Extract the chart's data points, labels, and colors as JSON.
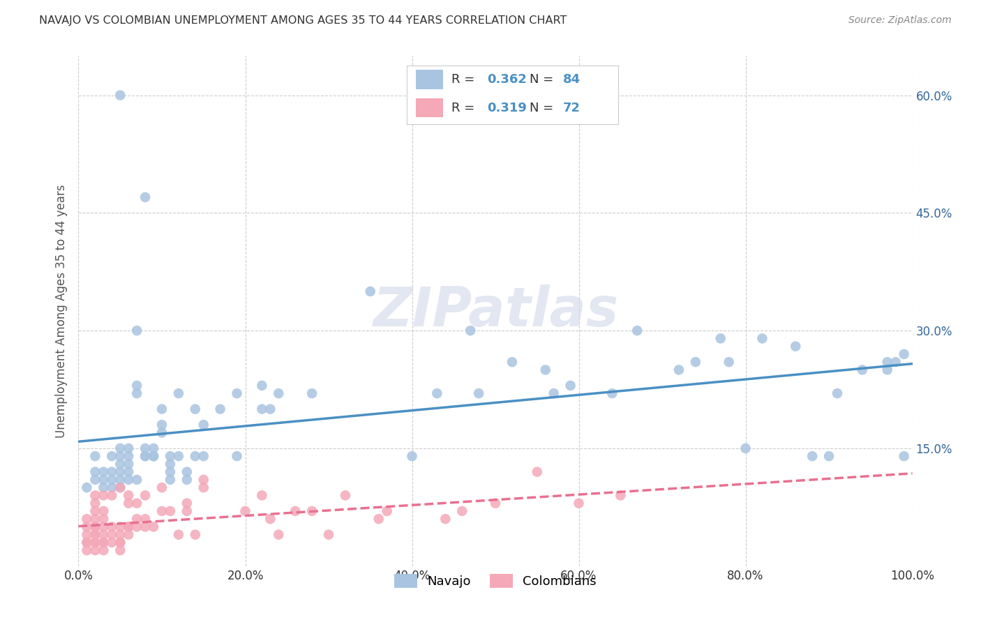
{
  "title": "NAVAJO VS COLOMBIAN UNEMPLOYMENT AMONG AGES 35 TO 44 YEARS CORRELATION CHART",
  "source": "Source: ZipAtlas.com",
  "ylabel": "Unemployment Among Ages 35 to 44 years",
  "xlim": [
    0,
    100
  ],
  "ylim": [
    0,
    65
  ],
  "xticks": [
    0,
    20,
    40,
    60,
    80,
    100
  ],
  "yticks": [
    0,
    15,
    30,
    45,
    60
  ],
  "xticklabels": [
    "0.0%",
    "20.0%",
    "40.0%",
    "60.0%",
    "80.0%",
    "100.0%"
  ],
  "yticklabels": [
    "",
    "15.0%",
    "30.0%",
    "45.0%",
    "60.0%"
  ],
  "navajo_R": 0.362,
  "navajo_N": 84,
  "colombian_R": 0.319,
  "colombian_N": 72,
  "navajo_color": "#a8c4e0",
  "colombian_color": "#f4a8b8",
  "navajo_line_color": "#4a90c4",
  "colombian_line_color": "#e87090",
  "navajo_x": [
    1,
    2,
    2,
    2,
    3,
    3,
    3,
    4,
    4,
    4,
    4,
    5,
    5,
    5,
    5,
    5,
    5,
    5,
    6,
    6,
    6,
    6,
    6,
    7,
    7,
    7,
    7,
    8,
    8,
    8,
    8,
    9,
    9,
    9,
    10,
    10,
    10,
    11,
    11,
    11,
    11,
    12,
    12,
    13,
    13,
    14,
    14,
    15,
    15,
    17,
    19,
    19,
    22,
    22,
    23,
    24,
    28,
    35,
    40,
    43,
    47,
    48,
    52,
    56,
    57,
    59,
    64,
    67,
    72,
    74,
    77,
    78,
    80,
    82,
    86,
    88,
    90,
    91,
    94,
    97,
    97,
    98,
    99,
    99
  ],
  "navajo_y": [
    10,
    11,
    12,
    14,
    10,
    11,
    12,
    10,
    11,
    12,
    14,
    10,
    11,
    12,
    13,
    14,
    15,
    60,
    11,
    12,
    13,
    14,
    15,
    11,
    22,
    23,
    30,
    14,
    14,
    15,
    47,
    14,
    14,
    15,
    17,
    18,
    20,
    11,
    12,
    13,
    14,
    14,
    22,
    11,
    12,
    14,
    20,
    14,
    18,
    20,
    14,
    22,
    20,
    23,
    20,
    22,
    22,
    35,
    14,
    22,
    30,
    22,
    26,
    25,
    22,
    23,
    22,
    30,
    25,
    26,
    29,
    26,
    15,
    29,
    28,
    14,
    14,
    22,
    25,
    25,
    26,
    26,
    27,
    14
  ],
  "colombian_x": [
    1,
    1,
    1,
    1,
    1,
    1,
    2,
    2,
    2,
    2,
    2,
    2,
    2,
    2,
    2,
    2,
    2,
    3,
    3,
    3,
    3,
    3,
    3,
    3,
    3,
    4,
    4,
    4,
    4,
    5,
    5,
    5,
    5,
    5,
    5,
    6,
    6,
    6,
    6,
    6,
    7,
    7,
    7,
    8,
    8,
    8,
    9,
    10,
    10,
    11,
    12,
    13,
    13,
    14,
    15,
    15,
    20,
    22,
    23,
    24,
    26,
    28,
    30,
    32,
    36,
    37,
    44,
    46,
    50,
    55,
    60,
    65
  ],
  "colombian_y": [
    2,
    3,
    3,
    4,
    5,
    6,
    2,
    3,
    3,
    4,
    4,
    5,
    5,
    6,
    7,
    8,
    9,
    2,
    3,
    3,
    4,
    5,
    6,
    7,
    9,
    3,
    4,
    5,
    9,
    2,
    3,
    3,
    4,
    5,
    10,
    4,
    5,
    5,
    8,
    9,
    5,
    6,
    8,
    5,
    6,
    9,
    5,
    7,
    10,
    7,
    4,
    7,
    8,
    4,
    10,
    11,
    7,
    9,
    6,
    4,
    7,
    7,
    4,
    9,
    6,
    7,
    6,
    7,
    8,
    12,
    8,
    9
  ],
  "background_color": "#ffffff",
  "grid_color": "#cccccc",
  "watermark_text": "ZIPatlas",
  "watermark_color": "#d0d8e8"
}
